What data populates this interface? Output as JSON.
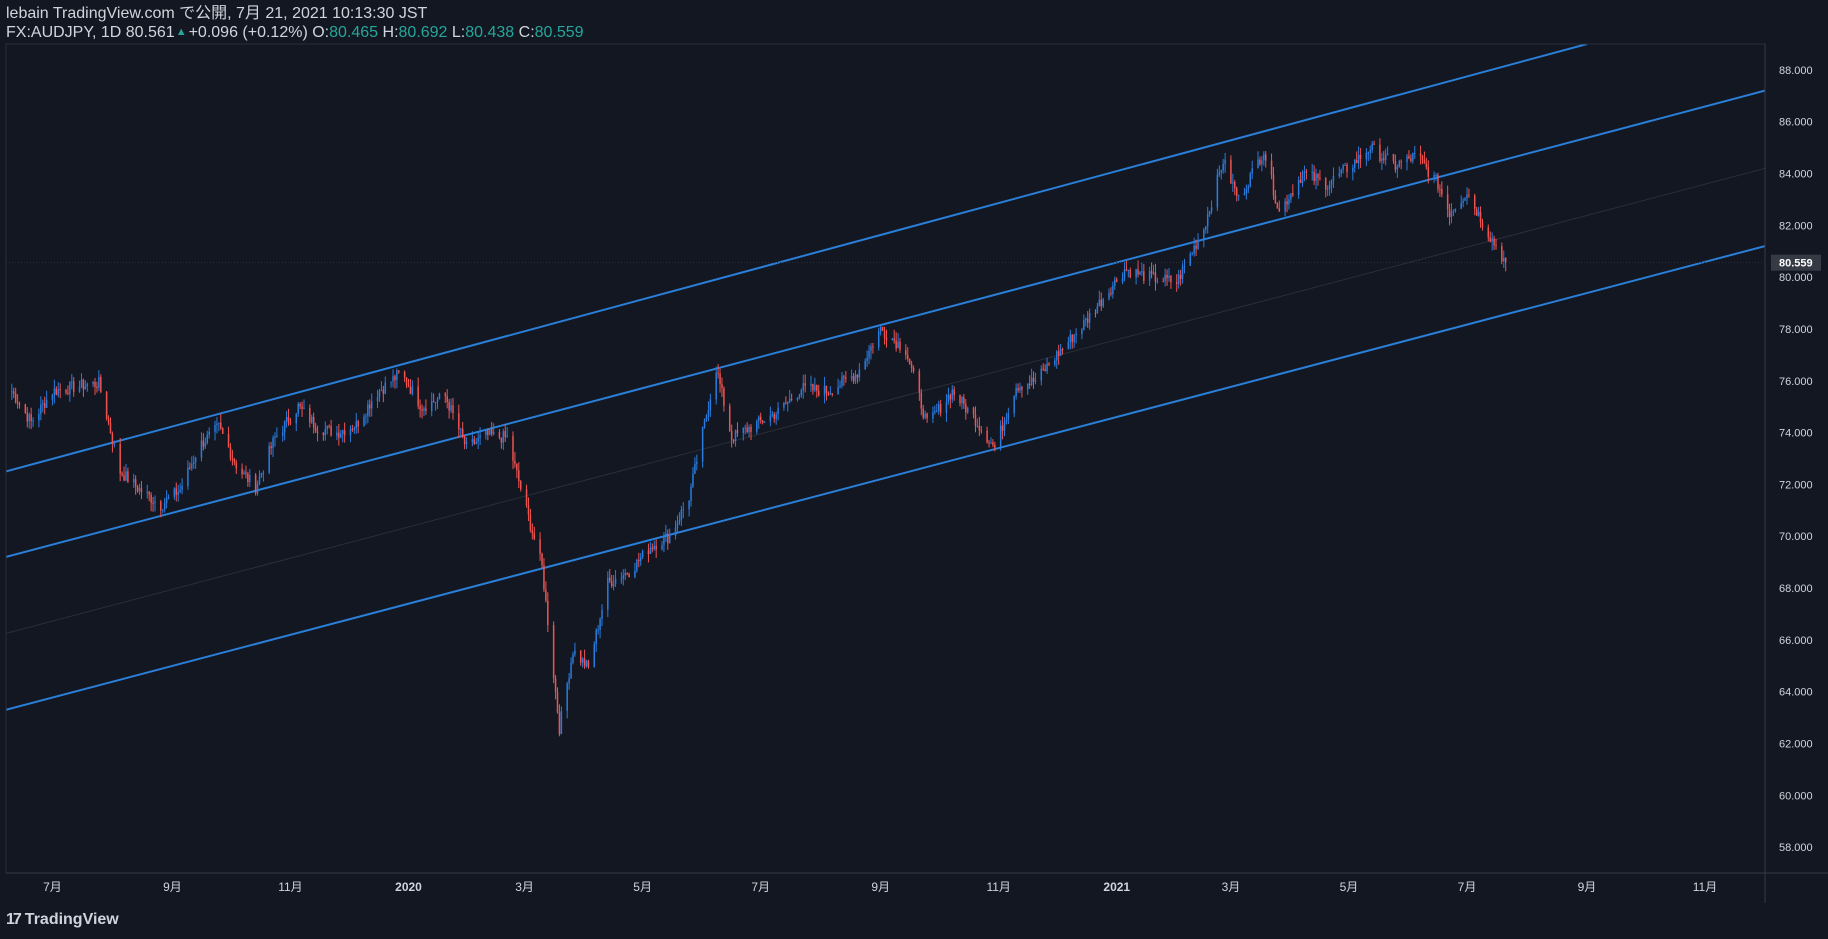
{
  "header": {
    "publish_line": "lebain TradingView.com で公開, 7月 21, 2021 10:13:30 JST",
    "symbol_label": "FX:AUDJPY, 1D",
    "last_price": "80.561",
    "change": "+0.096 (+0.12%)",
    "open_label": "O:",
    "open_value": "80.465",
    "high_label": "H:",
    "high_value": "80.692",
    "low_label": "L:",
    "low_value": "80.438",
    "close_label": "C:",
    "close_value": "80.559"
  },
  "footer": {
    "logo_text": "TradingView",
    "logo_icon": "tradingview-logo-icon"
  },
  "colors": {
    "background": "#131722",
    "up": "#2a7bdc",
    "down": "#ef5350",
    "channel": "#2a7fd8",
    "text": "#d1d4dc",
    "accent_green": "#26a69a"
  },
  "chart_data": {
    "type": "candlestick",
    "symbol": "FX:AUDJPY",
    "interval": "1D",
    "ylim": [
      57,
      89
    ],
    "y_ticks": [
      "58.000",
      "60.000",
      "62.000",
      "64.000",
      "66.000",
      "68.000",
      "70.000",
      "72.000",
      "74.000",
      "76.000",
      "78.000",
      "80.000",
      "82.000",
      "84.000",
      "86.000",
      "88.000"
    ],
    "x_ticks": [
      "7月",
      "9月",
      "11月",
      "2020",
      "3月",
      "5月",
      "7月",
      "9月",
      "11月",
      "2021",
      "3月",
      "5月",
      "7月",
      "9月",
      "11月"
    ],
    "x_tick_dates": [
      "2019-07-01",
      "2019-09-01",
      "2019-11-01",
      "2020-01-01",
      "2020-03-01",
      "2020-05-01",
      "2020-07-01",
      "2020-09-01",
      "2020-11-01",
      "2021-01-01",
      "2021-03-01",
      "2021-05-01",
      "2021-07-01",
      "2021-09-01",
      "2021-11-01"
    ],
    "xlim": [
      "2019-06-07",
      "2021-12-02"
    ],
    "current_price_label": "80.559",
    "price_path": [
      [
        "2019-06-10",
        75.6
      ],
      [
        "2019-06-20",
        74.4
      ],
      [
        "2019-07-01",
        75.6
      ],
      [
        "2019-07-15",
        75.8
      ],
      [
        "2019-07-25",
        75.9
      ],
      [
        "2019-08-05",
        72.5
      ],
      [
        "2019-08-15",
        71.8
      ],
      [
        "2019-08-26",
        71.2
      ],
      [
        "2019-09-05",
        71.8
      ],
      [
        "2019-09-15",
        73.5
      ],
      [
        "2019-09-25",
        74.2
      ],
      [
        "2019-10-05",
        72.6
      ],
      [
        "2019-10-14",
        71.9
      ],
      [
        "2019-10-24",
        73.8
      ],
      [
        "2019-11-05",
        75.0
      ],
      [
        "2019-11-15",
        74.2
      ],
      [
        "2019-11-25",
        74.0
      ],
      [
        "2019-12-05",
        74.3
      ],
      [
        "2019-12-15",
        75.5
      ],
      [
        "2019-12-28",
        76.3
      ],
      [
        "2020-01-08",
        75.0
      ],
      [
        "2020-01-20",
        75.4
      ],
      [
        "2020-01-31",
        73.4
      ],
      [
        "2020-02-10",
        73.9
      ],
      [
        "2020-02-21",
        73.8
      ],
      [
        "2020-03-02",
        71.0
      ],
      [
        "2020-03-10",
        68.8
      ],
      [
        "2020-03-19",
        62.6
      ],
      [
        "2020-03-26",
        65.6
      ],
      [
        "2020-04-03",
        64.9
      ],
      [
        "2020-04-13",
        68.2
      ],
      [
        "2020-04-25",
        68.7
      ],
      [
        "2020-05-05",
        69.6
      ],
      [
        "2020-05-15",
        70.0
      ],
      [
        "2020-05-25",
        71.5
      ],
      [
        "2020-06-08",
        76.5
      ],
      [
        "2020-06-16",
        73.8
      ],
      [
        "2020-06-28",
        74.3
      ],
      [
        "2020-07-10",
        74.8
      ],
      [
        "2020-07-22",
        75.7
      ],
      [
        "2020-08-05",
        75.6
      ],
      [
        "2020-08-20",
        76.3
      ],
      [
        "2020-09-01",
        78.0
      ],
      [
        "2020-09-14",
        77.2
      ],
      [
        "2020-09-25",
        74.3
      ],
      [
        "2020-10-08",
        75.6
      ],
      [
        "2020-10-20",
        74.5
      ],
      [
        "2020-10-30",
        73.4
      ],
      [
        "2020-11-10",
        75.8
      ],
      [
        "2020-11-20",
        76.0
      ],
      [
        "2020-12-01",
        77.0
      ],
      [
        "2020-12-15",
        78.2
      ],
      [
        "2021-01-05",
        80.3
      ],
      [
        "2021-01-18",
        80.0
      ],
      [
        "2021-02-01",
        79.8
      ],
      [
        "2021-02-15",
        81.9
      ],
      [
        "2021-02-25",
        84.5
      ],
      [
        "2021-03-05",
        83.0
      ],
      [
        "2021-03-18",
        84.9
      ],
      [
        "2021-03-26",
        82.5
      ],
      [
        "2021-04-07",
        84.0
      ],
      [
        "2021-04-20",
        83.6
      ],
      [
        "2021-05-05",
        84.5
      ],
      [
        "2021-05-12",
        85.0
      ],
      [
        "2021-05-25",
        84.3
      ],
      [
        "2021-06-05",
        84.7
      ],
      [
        "2021-06-16",
        83.6
      ],
      [
        "2021-06-22",
        82.5
      ],
      [
        "2021-07-01",
        83.3
      ],
      [
        "2021-07-12",
        81.7
      ],
      [
        "2021-07-21",
        80.56
      ]
    ],
    "channel_lines": [
      {
        "name": "upper",
        "from": [
          "2019-06-07",
          72.5
        ],
        "to": [
          "2021-09-01",
          89.0
        ]
      },
      {
        "name": "middle",
        "from": [
          "2019-06-07",
          69.2
        ],
        "to": [
          "2021-12-02",
          87.2
        ]
      },
      {
        "name": "lower",
        "from": [
          "2019-06-07",
          63.3
        ],
        "to": [
          "2021-12-02",
          81.2
        ]
      }
    ],
    "grid": false
  }
}
